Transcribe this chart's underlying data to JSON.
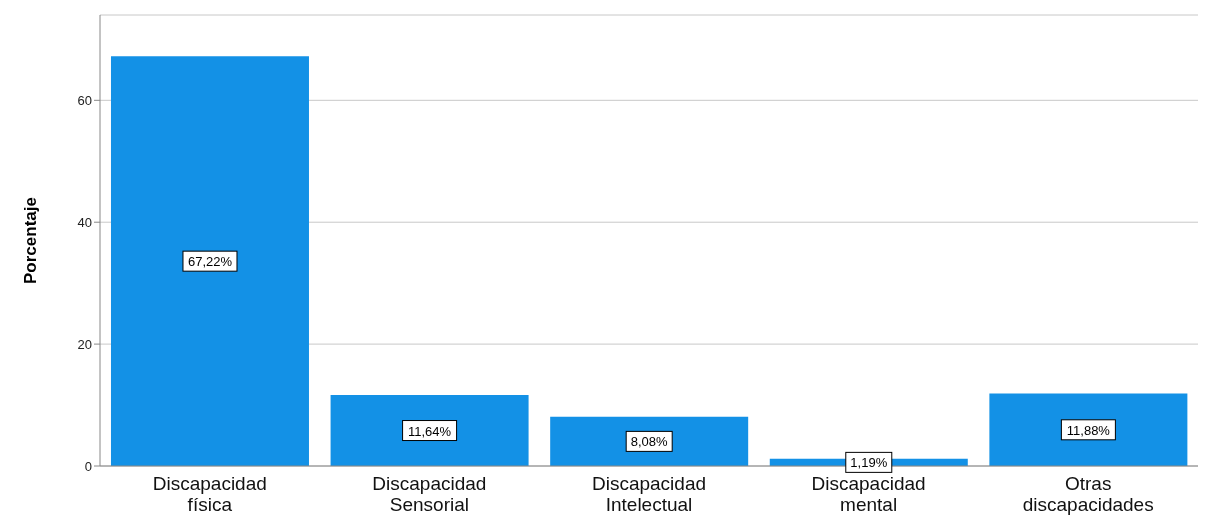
{
  "chart_data": {
    "type": "bar",
    "ylabel": "Porcentaje",
    "categories": [
      "Discapacidad física",
      "Discapacidad Sensorial",
      "Discapacidad Intelectual",
      "Discapacidad mental",
      "Otras discapacidades"
    ],
    "values": [
      67.22,
      11.64,
      8.08,
      1.19,
      11.88
    ],
    "value_labels": [
      "67,22%",
      "11,64%",
      "8,08%",
      "1,19%",
      "11,88%"
    ],
    "color": "#1391e6",
    "ylim": [
      0,
      74
    ],
    "yticks": [
      0,
      20,
      40,
      60
    ],
    "grid": "y"
  }
}
